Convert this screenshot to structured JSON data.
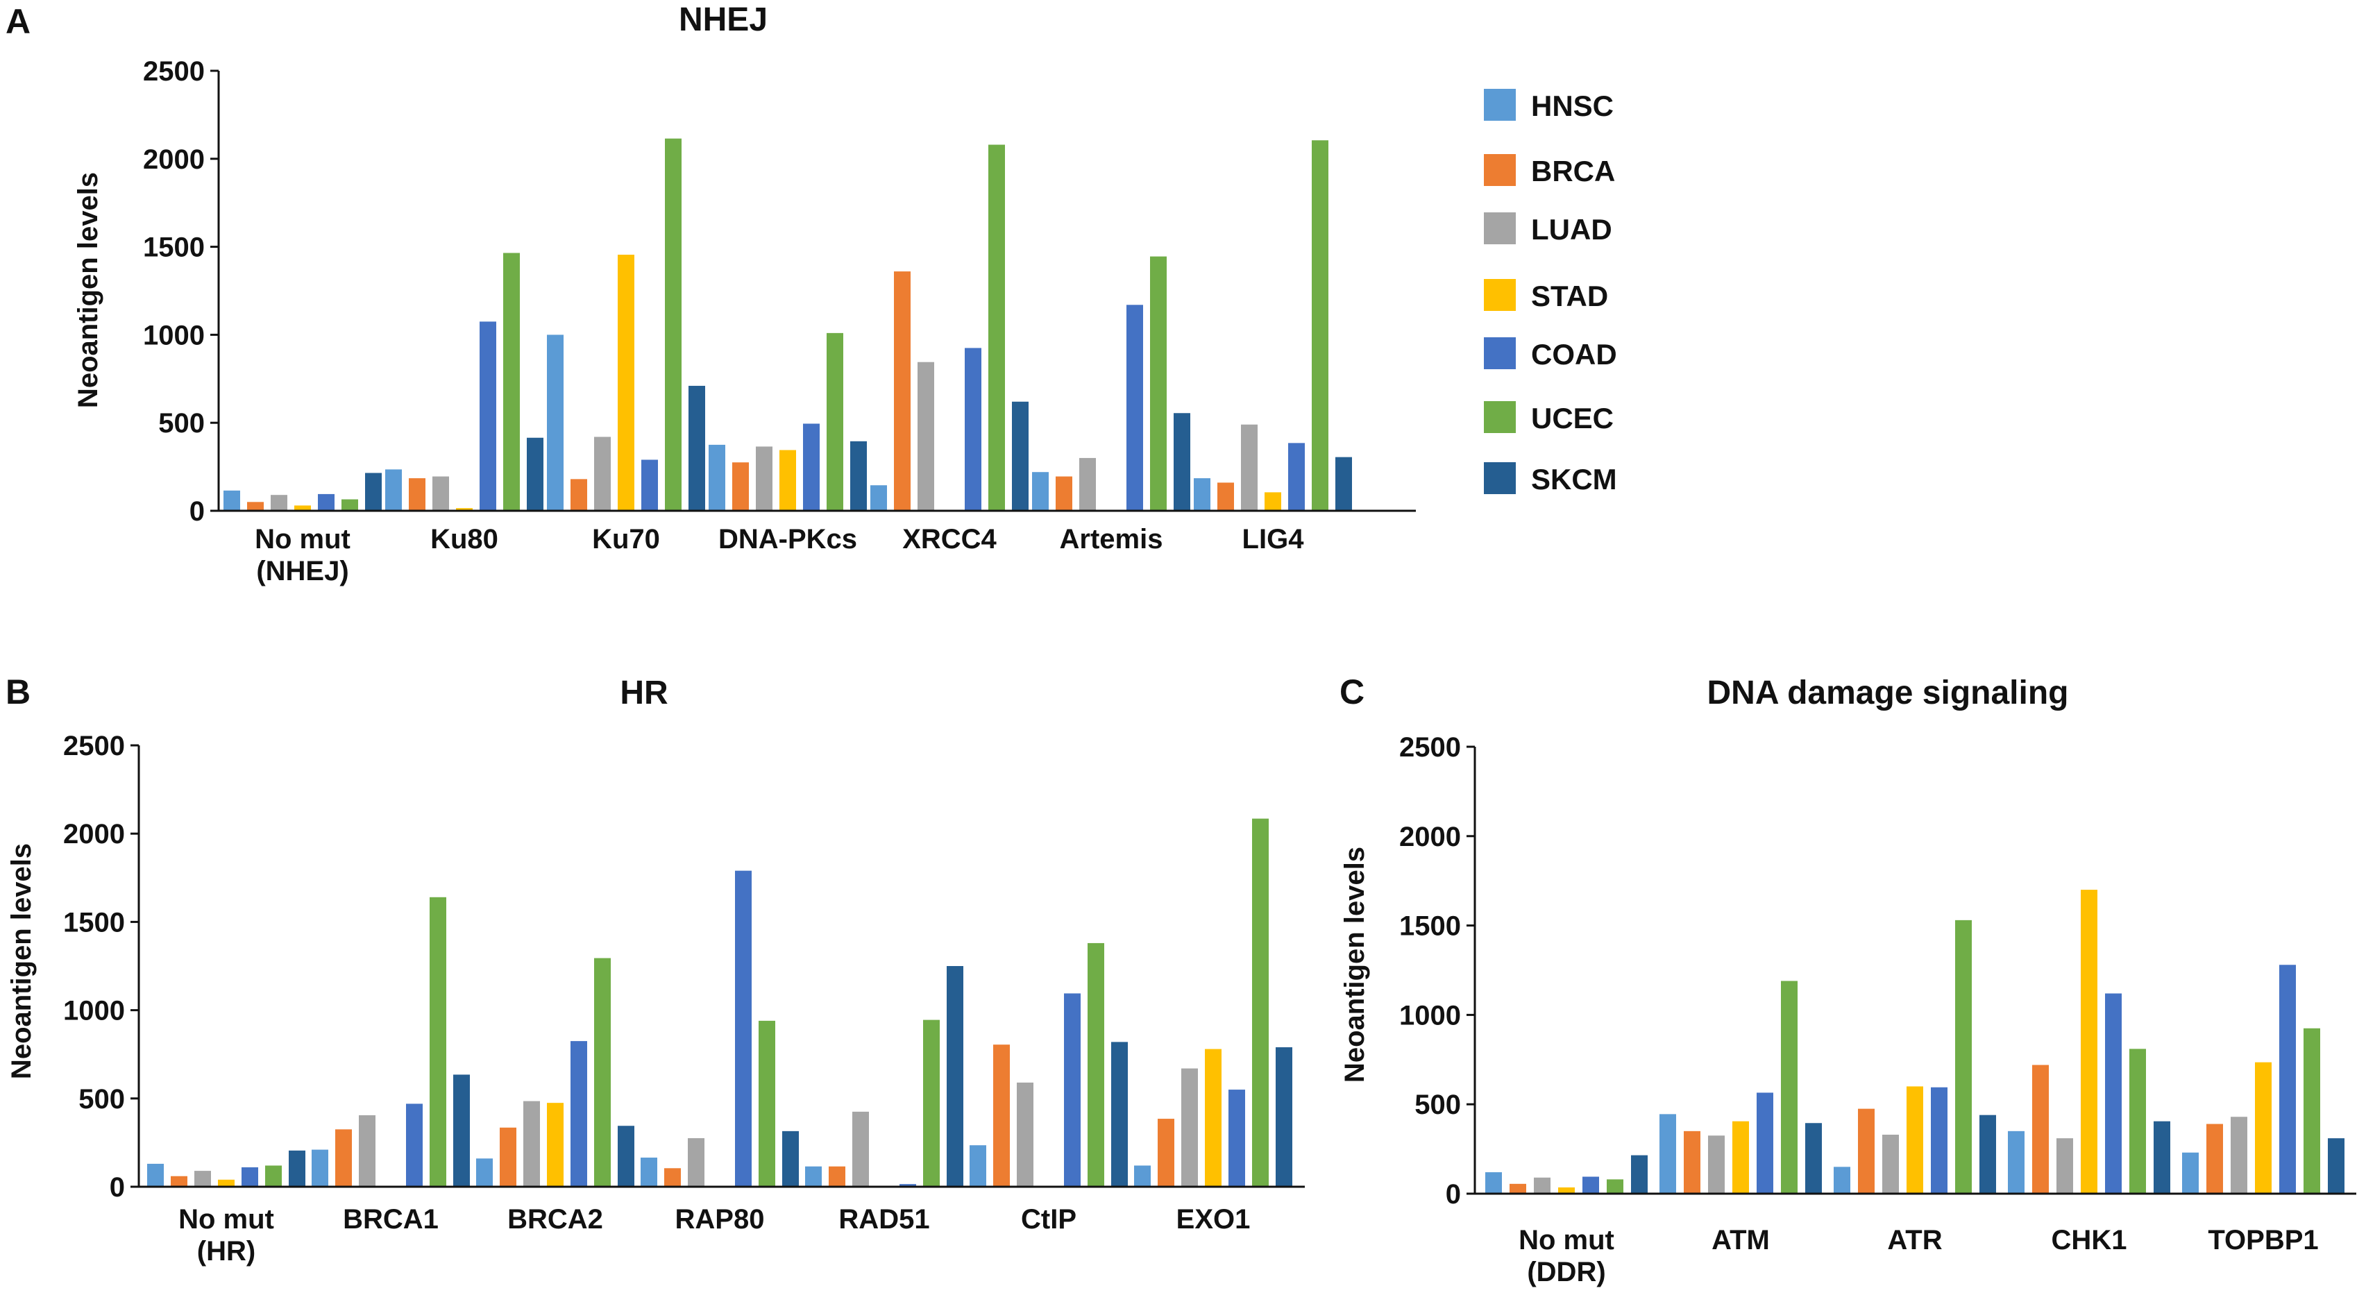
{
  "colors": {
    "HNSC": "#5b9bd5",
    "BRCA": "#ed7d31",
    "LUAD": "#a5a5a5",
    "STAD": "#ffc000",
    "COAD": "#4472c4",
    "UCEC": "#70ad47",
    "SKCM": "#255e91"
  },
  "legend": [
    "HNSC",
    "BRCA",
    "LUAD",
    "STAD",
    "COAD",
    "UCEC",
    "SKCM"
  ],
  "chart_data": [
    {
      "panel": "A",
      "type": "bar",
      "title": "NHEJ",
      "ylabel": "Neoantigen levels",
      "xlabel": "",
      "ylim": [
        0,
        2500
      ],
      "yticks": [
        0,
        500,
        1000,
        1500,
        2000,
        2500
      ],
      "categories": [
        [
          "No mut",
          "(NHEJ)"
        ],
        [
          "Ku80"
        ],
        [
          "Ku70"
        ],
        [
          "DNA-PKcs"
        ],
        [
          "XRCC4"
        ],
        [
          "Artemis"
        ],
        [
          "LIG4"
        ]
      ],
      "series": [
        {
          "name": "HNSC",
          "values": [
            115,
            235,
            1000,
            375,
            145,
            220,
            185
          ]
        },
        {
          "name": "BRCA",
          "values": [
            50,
            185,
            180,
            275,
            1360,
            195,
            160
          ]
        },
        {
          "name": "LUAD",
          "values": [
            90,
            195,
            420,
            365,
            845,
            300,
            490
          ]
        },
        {
          "name": "STAD",
          "values": [
            30,
            15,
            1455,
            345,
            0,
            0,
            105
          ]
        },
        {
          "name": "COAD",
          "values": [
            95,
            1075,
            290,
            495,
            925,
            1170,
            385
          ]
        },
        {
          "name": "UCEC",
          "values": [
            65,
            1465,
            2115,
            1010,
            2080,
            1445,
            2105
          ]
        },
        {
          "name": "SKCM",
          "values": [
            215,
            415,
            710,
            395,
            620,
            555,
            305
          ]
        }
      ]
    },
    {
      "panel": "B",
      "type": "bar",
      "title": "HR",
      "ylabel": "Neoantigen levels",
      "xlabel": "",
      "ylim": [
        0,
        2500
      ],
      "yticks": [
        0,
        500,
        1000,
        1500,
        2000,
        2500
      ],
      "categories": [
        [
          "No mut",
          "(HR)"
        ],
        [
          "BRCA1"
        ],
        [
          "BRCA2"
        ],
        [
          "RAP80"
        ],
        [
          "RAD51"
        ],
        [
          "CtIP"
        ],
        [
          "EXO1"
        ]
      ],
      "series": [
        {
          "name": "HNSC",
          "values": [
            130,
            210,
            160,
            165,
            115,
            235,
            120
          ]
        },
        {
          "name": "BRCA",
          "values": [
            60,
            325,
            335,
            105,
            115,
            805,
            385
          ]
        },
        {
          "name": "LUAD",
          "values": [
            90,
            405,
            485,
            275,
            425,
            590,
            670
          ]
        },
        {
          "name": "STAD",
          "values": [
            40,
            0,
            475,
            0,
            0,
            0,
            780
          ]
        },
        {
          "name": "COAD",
          "values": [
            110,
            470,
            825,
            1790,
            15,
            1095,
            550
          ]
        },
        {
          "name": "UCEC",
          "values": [
            120,
            1640,
            1295,
            940,
            945,
            1380,
            2085
          ]
        },
        {
          "name": "SKCM",
          "values": [
            205,
            635,
            345,
            315,
            1250,
            820,
            790
          ]
        }
      ]
    },
    {
      "panel": "C",
      "type": "bar",
      "title": "DNA damage signaling",
      "ylabel": "Neoantigen levels",
      "xlabel": "",
      "ylim": [
        0,
        2500
      ],
      "yticks": [
        0,
        500,
        1000,
        1500,
        2000,
        2500
      ],
      "categories": [
        [
          "No mut",
          "(DDR)"
        ],
        [
          "ATM"
        ],
        [
          "ATR"
        ],
        [
          "CHK1"
        ],
        [
          "TOPBP1"
        ]
      ],
      "series": [
        {
          "name": "HNSC",
          "values": [
            120,
            445,
            150,
            350,
            230
          ]
        },
        {
          "name": "BRCA",
          "values": [
            55,
            350,
            475,
            720,
            390
          ]
        },
        {
          "name": "LUAD",
          "values": [
            90,
            325,
            330,
            310,
            430
          ]
        },
        {
          "name": "STAD",
          "values": [
            35,
            405,
            600,
            1700,
            735
          ]
        },
        {
          "name": "COAD",
          "values": [
            95,
            565,
            595,
            1120,
            1280
          ]
        },
        {
          "name": "UCEC",
          "values": [
            80,
            1190,
            1530,
            810,
            925
          ]
        },
        {
          "name": "SKCM",
          "values": [
            215,
            395,
            440,
            405,
            310
          ]
        }
      ]
    }
  ]
}
